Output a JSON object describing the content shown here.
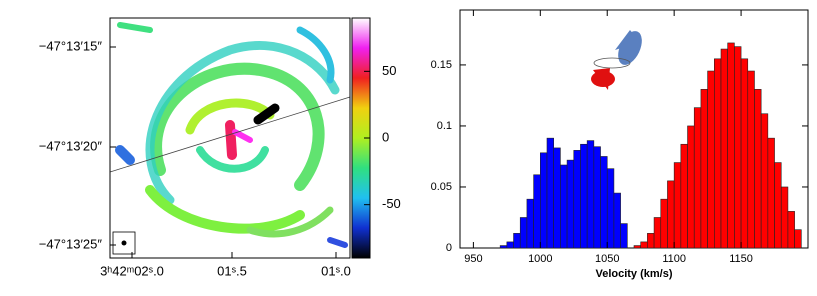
{
  "chart_data": [
    {
      "type": "image",
      "xtick_labels": [
        "3ʰ42ᵐ02ˢ.0",
        "01ˢ.5",
        "01ˢ.0"
      ],
      "ytick_labels": [
        "−47°13′15″",
        "−47°13′20″",
        "−47°13′25″"
      ],
      "colorbar": {
        "lim": [
          -90,
          90
        ],
        "ticks": [
          -50,
          0,
          50
        ],
        "colors": [
          "#000000",
          "#1030d0",
          "#20c0f0",
          "#30e080",
          "#b0f020",
          "#f0d010",
          "#f02020",
          "#f020f0",
          "#ffffff"
        ]
      }
    },
    {
      "type": "histogram",
      "xlabel": "Velocity (km/s)",
      "xlim": [
        940,
        1200
      ],
      "ylim": [
        0,
        0.195
      ],
      "xticks": [
        950,
        1000,
        1050,
        1100,
        1150
      ],
      "yticks": [
        0,
        0.05,
        0.1,
        0.15
      ],
      "series": [
        {
          "color": "#0000ff",
          "bins": [
            970,
            975,
            980,
            985,
            990,
            995,
            1000,
            1005,
            1010,
            1015,
            1020,
            1025,
            1030,
            1035,
            1040,
            1045,
            1050,
            1055,
            1060,
            1065
          ],
          "values": [
            0.002,
            0.005,
            0.012,
            0.025,
            0.04,
            0.06,
            0.078,
            0.09,
            0.082,
            0.068,
            0.072,
            0.08,
            0.085,
            0.088,
            0.083,
            0.075,
            0.065,
            0.045,
            0.02
          ]
        },
        {
          "color": "#ff0000",
          "bins": [
            1070,
            1075,
            1080,
            1085,
            1090,
            1095,
            1100,
            1105,
            1110,
            1115,
            1120,
            1125,
            1130,
            1135,
            1140,
            1145,
            1150,
            1155,
            1160,
            1165,
            1170,
            1175,
            1180,
            1185,
            1190,
            1195
          ],
          "values": [
            0.002,
            0.005,
            0.012,
            0.025,
            0.04,
            0.055,
            0.07,
            0.085,
            0.1,
            0.115,
            0.13,
            0.145,
            0.155,
            0.163,
            0.168,
            0.165,
            0.155,
            0.145,
            0.13,
            0.11,
            0.09,
            0.07,
            0.05,
            0.03,
            0.015
          ]
        }
      ]
    }
  ]
}
